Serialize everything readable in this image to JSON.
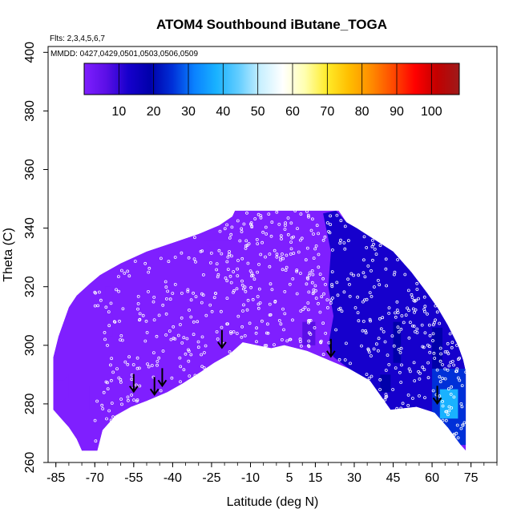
{
  "chart_data": {
    "type": "heatmap",
    "title": "ATOM4 Southbound iButane_TOGA",
    "subtitle_flights": "Flts: 2,3,4,5,6,7",
    "subtitle_dates": "MMDD: 0427,0429,0501,0503,0506,0509",
    "xlabel": "Latitude (deg N)",
    "ylabel": "Theta (C)",
    "xlim": [
      -88,
      85
    ],
    "ylim": [
      260,
      402
    ],
    "x_ticks": [
      -85,
      -70,
      -55,
      -40,
      -25,
      -10,
      5,
      15,
      30,
      45,
      60,
      75
    ],
    "y_ticks": [
      260,
      280,
      300,
      320,
      340,
      360,
      380,
      400
    ],
    "colorbar": {
      "min": 0,
      "max": 108,
      "ticks": [
        10,
        20,
        30,
        40,
        50,
        60,
        70,
        80,
        90,
        100
      ],
      "stops": [
        "#7f1fff",
        "#5b0fe6",
        "#1600cc",
        "#0000aa",
        "#0030d8",
        "#0a82ff",
        "#19b2ff",
        "#63cdff",
        "#c9f0ff",
        "#ffffff",
        "#ffffb0",
        "#ffec2a",
        "#ffbe00",
        "#ff8c00",
        "#ff4a00",
        "#ff0000",
        "#c20000",
        "#9e1a1a"
      ]
    },
    "data_envelope": {
      "upper": [
        [
          -86,
          289
        ],
        [
          -86,
          296
        ],
        [
          -84,
          303
        ],
        [
          -80,
          313
        ],
        [
          -77,
          317
        ],
        [
          -72,
          321
        ],
        [
          -68,
          324
        ],
        [
          -60,
          328
        ],
        [
          -50,
          332
        ],
        [
          -40,
          335
        ],
        [
          -30,
          338
        ],
        [
          -22,
          341
        ],
        [
          -17,
          344
        ],
        [
          -16,
          346
        ],
        [
          24,
          346
        ],
        [
          27,
          342
        ],
        [
          31,
          340
        ],
        [
          38,
          336
        ],
        [
          45,
          332
        ],
        [
          52,
          325
        ],
        [
          58,
          318
        ],
        [
          62,
          313
        ],
        [
          66,
          307
        ],
        [
          70,
          300
        ],
        [
          72,
          295
        ],
        [
          73,
          291
        ]
      ],
      "lower": [
        [
          -86,
          284
        ],
        [
          -86,
          278
        ],
        [
          -83,
          275
        ],
        [
          -80,
          272
        ],
        [
          -77,
          268
        ],
        [
          -75,
          264
        ],
        [
          -69,
          264
        ],
        [
          -67,
          271
        ],
        [
          -62,
          276
        ],
        [
          -56,
          279
        ],
        [
          -50,
          281
        ],
        [
          -42,
          284
        ],
        [
          -36,
          287
        ],
        [
          -29,
          291
        ],
        [
          -24,
          294
        ],
        [
          -18,
          297
        ],
        [
          -13,
          301
        ],
        [
          -2,
          299
        ],
        [
          3,
          300
        ],
        [
          12,
          298
        ],
        [
          20,
          295
        ],
        [
          28,
          292
        ],
        [
          36,
          288
        ],
        [
          44,
          278
        ],
        [
          54,
          279
        ],
        [
          61,
          277
        ],
        [
          66,
          272
        ],
        [
          71,
          266
        ],
        [
          73,
          264
        ]
      ]
    },
    "field_regions": [
      {
        "value": 1,
        "polygon": [
          [
            -86,
            289
          ],
          [
            -86,
            296
          ],
          [
            -84,
            303
          ],
          [
            -80,
            313
          ],
          [
            -77,
            317
          ],
          [
            -72,
            321
          ],
          [
            -68,
            324
          ],
          [
            -60,
            328
          ],
          [
            -50,
            332
          ],
          [
            -40,
            335
          ],
          [
            -30,
            338
          ],
          [
            -22,
            341
          ],
          [
            -17,
            344
          ],
          [
            -16,
            346
          ],
          [
            24,
            346
          ],
          [
            27,
            342
          ],
          [
            31,
            340
          ],
          [
            38,
            336
          ],
          [
            45,
            332
          ],
          [
            52,
            325
          ],
          [
            58,
            318
          ],
          [
            62,
            313
          ],
          [
            66,
            307
          ],
          [
            70,
            300
          ],
          [
            72,
            295
          ],
          [
            73,
            291
          ],
          [
            73,
            264
          ],
          [
            71,
            266
          ],
          [
            66,
            272
          ],
          [
            61,
            277
          ],
          [
            54,
            279
          ],
          [
            44,
            278
          ],
          [
            36,
            288
          ],
          [
            28,
            292
          ],
          [
            20,
            295
          ],
          [
            12,
            298
          ],
          [
            3,
            300
          ],
          [
            -2,
            299
          ],
          [
            -13,
            301
          ],
          [
            -18,
            297
          ],
          [
            -24,
            294
          ],
          [
            -29,
            291
          ],
          [
            -36,
            287
          ],
          [
            -42,
            284
          ],
          [
            -50,
            281
          ],
          [
            -56,
            279
          ],
          [
            -62,
            276
          ],
          [
            -67,
            271
          ],
          [
            -69,
            264
          ],
          [
            -75,
            264
          ],
          [
            -77,
            268
          ],
          [
            -80,
            272
          ],
          [
            -83,
            275
          ],
          [
            -86,
            278
          ],
          [
            -86,
            284
          ]
        ]
      },
      {
        "value": 5,
        "polygon": [
          [
            -86,
            288
          ],
          [
            -82,
            288
          ],
          [
            -80,
            290
          ],
          [
            -80,
            282
          ],
          [
            -84,
            281
          ],
          [
            -86,
            282
          ]
        ]
      },
      {
        "value": 5,
        "polygon": [
          [
            -66,
            320
          ],
          [
            -63,
            320
          ],
          [
            -63,
            303
          ],
          [
            -66,
            303
          ]
        ]
      },
      {
        "value": 5,
        "polygon": [
          [
            -76,
            286
          ],
          [
            -72,
            286
          ],
          [
            -72,
            278
          ],
          [
            -76,
            278
          ]
        ]
      },
      {
        "value": 4,
        "polygon": [
          [
            -28,
            336
          ],
          [
            -10,
            336
          ],
          [
            6,
            330
          ],
          [
            14,
            320
          ],
          [
            20,
            310
          ],
          [
            18,
            303
          ],
          [
            12,
            300
          ],
          [
            2,
            305
          ],
          [
            -8,
            318
          ],
          [
            -18,
            326
          ]
        ]
      },
      {
        "value": 7,
        "polygon": [
          [
            10,
            308
          ],
          [
            15,
            308
          ],
          [
            15,
            300
          ],
          [
            10,
            300
          ]
        ]
      },
      {
        "value": 13,
        "polygon": [
          [
            18,
            345
          ],
          [
            23,
            346
          ],
          [
            27,
            342
          ],
          [
            31,
            340
          ],
          [
            38,
            336
          ],
          [
            45,
            332
          ],
          [
            52,
            325
          ],
          [
            58,
            318
          ],
          [
            62,
            313
          ],
          [
            66,
            307
          ],
          [
            70,
            300
          ],
          [
            72,
            295
          ],
          [
            73,
            291
          ],
          [
            73,
            280
          ],
          [
            71,
            278
          ],
          [
            66,
            272
          ],
          [
            61,
            277
          ],
          [
            54,
            279
          ],
          [
            44,
            278
          ],
          [
            36,
            288
          ],
          [
            28,
            292
          ],
          [
            22,
            296
          ],
          [
            20,
            300
          ],
          [
            22,
            310
          ],
          [
            20,
            320
          ],
          [
            21,
            332
          ]
        ]
      },
      {
        "value": 15,
        "polygon": [
          [
            23,
            342
          ],
          [
            30,
            339
          ],
          [
            30,
            330
          ],
          [
            27,
            328
          ],
          [
            23,
            330
          ]
        ]
      },
      {
        "value": 15,
        "polygon": [
          [
            38,
            335
          ],
          [
            44,
            331
          ],
          [
            44,
            315
          ],
          [
            40,
            312
          ],
          [
            38,
            318
          ]
        ]
      },
      {
        "value": 20,
        "polygon": [
          [
            45,
            308
          ],
          [
            48,
            308
          ],
          [
            48,
            294
          ],
          [
            45,
            294
          ]
        ]
      },
      {
        "value": 15,
        "polygon": [
          [
            52,
            318
          ],
          [
            56,
            318
          ],
          [
            56,
            305
          ],
          [
            52,
            305
          ]
        ]
      },
      {
        "value": 20,
        "polygon": [
          [
            60,
            306
          ],
          [
            64,
            306
          ],
          [
            64,
            292
          ],
          [
            60,
            292
          ]
        ]
      },
      {
        "value": 28,
        "polygon": [
          [
            60,
            292
          ],
          [
            73,
            292
          ],
          [
            73,
            266
          ],
          [
            71,
            266
          ],
          [
            66,
            272
          ],
          [
            60,
            276
          ]
        ]
      },
      {
        "value": 40,
        "polygon": [
          [
            63,
            285
          ],
          [
            70,
            285
          ],
          [
            70,
            275
          ],
          [
            63,
            275
          ]
        ]
      },
      {
        "value": 22,
        "polygon": [
          [
            40,
            290
          ],
          [
            44,
            290
          ],
          [
            44,
            284
          ],
          [
            40,
            284
          ]
        ]
      }
    ],
    "samples_south_lat": [
      -70,
      13
    ],
    "samples_north_lat": [
      12,
      73
    ],
    "samples_theta": [
      267,
      346
    ],
    "arrows": [
      {
        "lat": -55,
        "theta": 288
      },
      {
        "lat": -47,
        "theta": 287
      },
      {
        "lat": -44,
        "theta": 290
      },
      {
        "lat": -21,
        "theta": 303
      },
      {
        "lat": 21,
        "theta": 300
      },
      {
        "lat": 62,
        "theta": 284
      }
    ]
  }
}
